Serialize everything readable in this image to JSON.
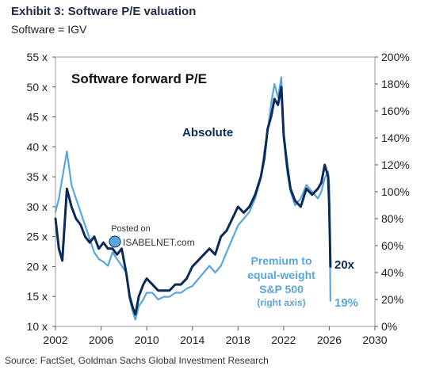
{
  "header": {
    "title": "Exhibit 3: Software P/E valuation",
    "subtitle": "Software = IGV"
  },
  "source": "Source: FactSet, Goldman Sachs Global Investment Research",
  "watermark": {
    "line1": "Posted on",
    "line2": "ISABELNET.com"
  },
  "colors": {
    "absolute": "#0b2a57",
    "premium": "#5aa6dc",
    "text": "#1f2a44"
  },
  "chart_data": {
    "type": "line",
    "title": "Software forward P/E",
    "x_ticks": [
      "2002",
      "2006",
      "2010",
      "2014",
      "2018",
      "2022",
      "2026",
      "2030"
    ],
    "y_left_ticks": [
      "10 x",
      "15 x",
      "20 x",
      "25 x",
      "30 x",
      "35 x",
      "40 x",
      "45 x",
      "50 x",
      "55 x"
    ],
    "y_right_ticks": [
      "0%",
      "20%",
      "40%",
      "60%",
      "80%",
      "100%",
      "120%",
      "140%",
      "160%",
      "180%",
      "200%"
    ],
    "xlim": [
      2002,
      2030
    ],
    "ylim_left": [
      10,
      55
    ],
    "ylim_right": [
      0,
      200
    ],
    "grid": false,
    "annotations": {
      "absolute": "Absolute",
      "premium_lines": [
        "Premium to",
        "equal-weight",
        "S&P 500"
      ],
      "premium_note": "(right axis)",
      "end_absolute": "20x",
      "end_premium": "19%"
    },
    "series": [
      {
        "key": "absolute",
        "axis": "left",
        "x": [
          2002.0,
          2002.3,
          2002.6,
          2003.0,
          2003.4,
          2003.8,
          2004.2,
          2004.6,
          2005.0,
          2005.4,
          2005.8,
          2006.2,
          2006.6,
          2007.0,
          2007.4,
          2007.8,
          2008.2,
          2008.5,
          2008.8,
          2009.0,
          2009.3,
          2009.7,
          2010.0,
          2010.5,
          2011.0,
          2011.5,
          2012.0,
          2012.5,
          2013.0,
          2013.5,
          2014.0,
          2014.5,
          2015.0,
          2015.5,
          2016.0,
          2016.5,
          2017.0,
          2017.5,
          2018.0,
          2018.5,
          2019.0,
          2019.5,
          2020.0,
          2020.3,
          2020.6,
          2020.9,
          2021.2,
          2021.5,
          2021.8,
          2022.0,
          2022.3,
          2022.6,
          2023.0,
          2023.5,
          2024.0,
          2024.5,
          2025.0,
          2025.3,
          2025.6,
          2025.9,
          2026.0,
          2026.1
        ],
        "y": [
          28,
          23,
          21,
          33,
          30,
          28,
          27,
          25,
          24,
          25,
          23,
          24,
          23,
          23,
          22,
          23,
          19,
          15,
          13,
          12,
          15,
          17,
          18,
          17,
          16,
          16,
          16,
          17,
          17,
          18,
          20,
          21,
          22,
          23,
          22,
          25,
          26,
          28,
          30,
          29,
          30,
          32,
          35,
          38,
          43,
          45,
          48,
          47,
          50,
          42,
          37,
          33,
          31,
          30,
          33,
          32,
          33,
          34,
          37,
          35,
          30,
          20
        ]
      },
      {
        "key": "premium",
        "axis": "right",
        "x": [
          2002.0,
          2002.3,
          2002.6,
          2003.0,
          2003.4,
          2003.8,
          2004.2,
          2004.6,
          2005.0,
          2005.4,
          2005.8,
          2006.2,
          2006.6,
          2007.0,
          2007.4,
          2007.8,
          2008.2,
          2008.5,
          2008.8,
          2009.0,
          2009.3,
          2009.7,
          2010.0,
          2010.5,
          2011.0,
          2011.5,
          2012.0,
          2012.5,
          2013.0,
          2013.5,
          2014.0,
          2014.5,
          2015.0,
          2015.5,
          2016.0,
          2016.5,
          2017.0,
          2017.5,
          2018.0,
          2018.5,
          2019.0,
          2019.5,
          2020.0,
          2020.3,
          2020.6,
          2020.9,
          2021.2,
          2021.5,
          2021.8,
          2022.0,
          2022.3,
          2022.6,
          2023.0,
          2023.5,
          2024.0,
          2024.5,
          2025.0,
          2025.3,
          2025.6,
          2025.9,
          2026.0,
          2026.1
        ],
        "y": [
          85,
          95,
          110,
          130,
          105,
          95,
          85,
          75,
          65,
          55,
          50,
          48,
          45,
          55,
          50,
          45,
          40,
          20,
          10,
          5,
          15,
          20,
          25,
          25,
          20,
          22,
          22,
          25,
          25,
          28,
          30,
          35,
          40,
          45,
          40,
          45,
          55,
          65,
          75,
          80,
          85,
          95,
          110,
          130,
          145,
          165,
          180,
          170,
          185,
          140,
          115,
          100,
          90,
          95,
          105,
          100,
          95,
          100,
          110,
          115,
          105,
          19
        ]
      }
    ]
  }
}
